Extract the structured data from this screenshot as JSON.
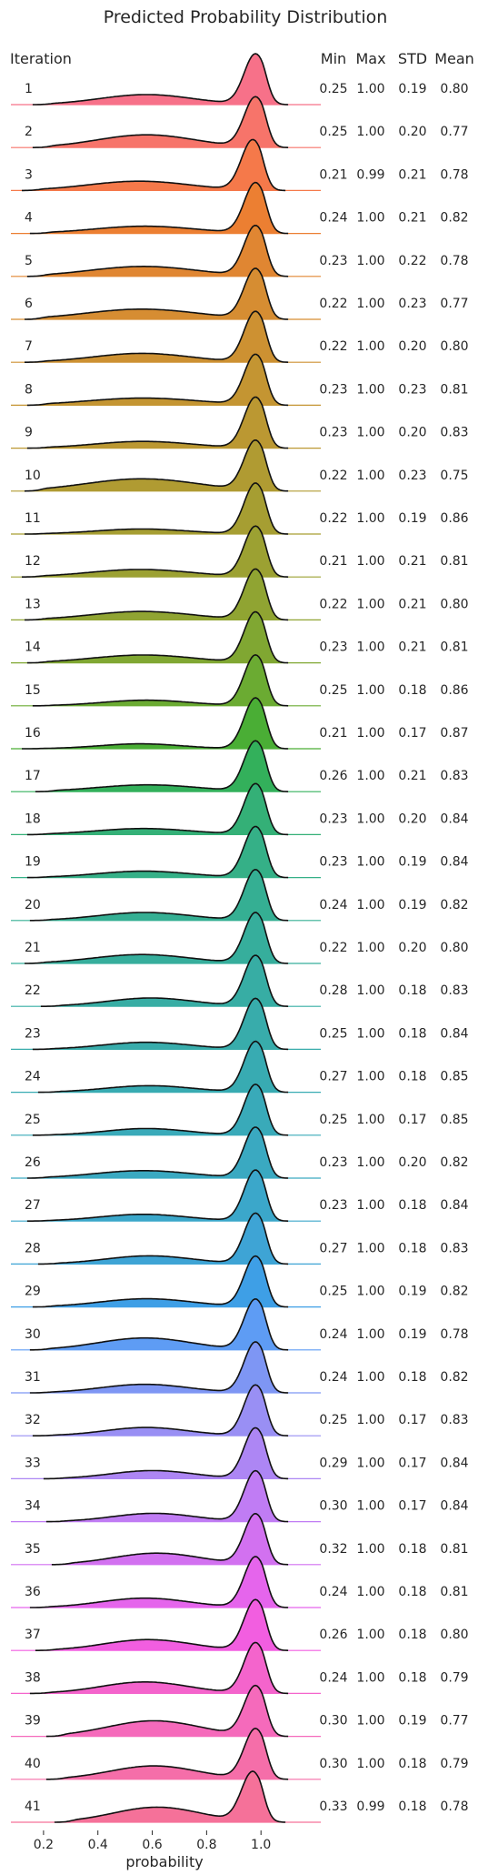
{
  "chart_data": {
    "type": "ridgeline",
    "title": "Predicted Probability Distribution",
    "xlabel": "probability",
    "row_header": "Iteration",
    "stat_headers": [
      "Min",
      "Max",
      "STD",
      "Mean"
    ],
    "xlim": [
      0.08,
      1.22
    ],
    "x_ticks": [
      "0.2",
      "0.4",
      "0.6",
      "0.8",
      "1.0"
    ],
    "rows": [
      {
        "label": "1",
        "min": "0.25",
        "max": "1.00",
        "std": "0.19",
        "mean": "0.80",
        "color": "#f77189"
      },
      {
        "label": "2",
        "min": "0.25",
        "max": "1.00",
        "std": "0.20",
        "mean": "0.77",
        "color": "#f7746a"
      },
      {
        "label": "3",
        "min": "0.21",
        "max": "0.99",
        "std": "0.21",
        "mean": "0.78",
        "color": "#f5794a"
      },
      {
        "label": "4",
        "min": "0.24",
        "max": "1.00",
        "std": "0.21",
        "mean": "0.82",
        "color": "#ec7f32"
      },
      {
        "label": "5",
        "min": "0.23",
        "max": "1.00",
        "std": "0.22",
        "mean": "0.78",
        "color": "#e08632"
      },
      {
        "label": "6",
        "min": "0.22",
        "max": "1.00",
        "std": "0.23",
        "mean": "0.77",
        "color": "#d68d32"
      },
      {
        "label": "7",
        "min": "0.22",
        "max": "1.00",
        "std": "0.20",
        "mean": "0.80",
        "color": "#cd9132"
      },
      {
        "label": "8",
        "min": "0.23",
        "max": "1.00",
        "std": "0.23",
        "mean": "0.81",
        "color": "#c49532"
      },
      {
        "label": "9",
        "min": "0.23",
        "max": "1.00",
        "std": "0.20",
        "mean": "0.83",
        "color": "#bb9832"
      },
      {
        "label": "10",
        "min": "0.22",
        "max": "1.00",
        "std": "0.23",
        "mean": "0.75",
        "color": "#b09b32"
      },
      {
        "label": "11",
        "min": "0.22",
        "max": "1.00",
        "std": "0.19",
        "mean": "0.86",
        "color": "#a69e32"
      },
      {
        "label": "12",
        "min": "0.21",
        "max": "1.00",
        "std": "0.21",
        "mean": "0.81",
        "color": "#9ca132"
      },
      {
        "label": "13",
        "min": "0.22",
        "max": "1.00",
        "std": "0.21",
        "mean": "0.80",
        "color": "#90a432"
      },
      {
        "label": "14",
        "min": "0.23",
        "max": "1.00",
        "std": "0.21",
        "mean": "0.81",
        "color": "#80a732"
      },
      {
        "label": "15",
        "min": "0.25",
        "max": "1.00",
        "std": "0.18",
        "mean": "0.86",
        "color": "#6bab32"
      },
      {
        "label": "16",
        "min": "0.21",
        "max": "1.00",
        "std": "0.17",
        "mean": "0.87",
        "color": "#4aae35"
      },
      {
        "label": "17",
        "min": "0.26",
        "max": "1.00",
        "std": "0.21",
        "mean": "0.83",
        "color": "#33b05b"
      },
      {
        "label": "18",
        "min": "0.23",
        "max": "1.00",
        "std": "0.20",
        "mean": "0.84",
        "color": "#34b077"
      },
      {
        "label": "19",
        "min": "0.23",
        "max": "1.00",
        "std": "0.19",
        "mean": "0.84",
        "color": "#35b087"
      },
      {
        "label": "20",
        "min": "0.24",
        "max": "1.00",
        "std": "0.19",
        "mean": "0.82",
        "color": "#35af93"
      },
      {
        "label": "21",
        "min": "0.22",
        "max": "1.00",
        "std": "0.20",
        "mean": "0.80",
        "color": "#36ae9c"
      },
      {
        "label": "22",
        "min": "0.28",
        "max": "1.00",
        "std": "0.18",
        "mean": "0.83",
        "color": "#37ada4"
      },
      {
        "label": "23",
        "min": "0.25",
        "max": "1.00",
        "std": "0.18",
        "mean": "0.84",
        "color": "#38acab"
      },
      {
        "label": "24",
        "min": "0.27",
        "max": "1.00",
        "std": "0.18",
        "mean": "0.85",
        "color": "#38abb2"
      },
      {
        "label": "25",
        "min": "0.25",
        "max": "1.00",
        "std": "0.17",
        "mean": "0.85",
        "color": "#39aab9"
      },
      {
        "label": "26",
        "min": "0.23",
        "max": "1.00",
        "std": "0.20",
        "mean": "0.82",
        "color": "#3aa9c1"
      },
      {
        "label": "27",
        "min": "0.23",
        "max": "1.00",
        "std": "0.18",
        "mean": "0.84",
        "color": "#3ba7ca"
      },
      {
        "label": "28",
        "min": "0.27",
        "max": "1.00",
        "std": "0.18",
        "mean": "0.83",
        "color": "#3ea4d5"
      },
      {
        "label": "29",
        "min": "0.25",
        "max": "1.00",
        "std": "0.19",
        "mean": "0.82",
        "color": "#3e9fe6"
      },
      {
        "label": "30",
        "min": "0.24",
        "max": "1.00",
        "std": "0.19",
        "mean": "0.78",
        "color": "#5e9cf4"
      },
      {
        "label": "31",
        "min": "0.24",
        "max": "1.00",
        "std": "0.18",
        "mean": "0.82",
        "color": "#7e96f4"
      },
      {
        "label": "32",
        "min": "0.25",
        "max": "1.00",
        "std": "0.17",
        "mean": "0.83",
        "color": "#998ff4"
      },
      {
        "label": "33",
        "min": "0.29",
        "max": "1.00",
        "std": "0.17",
        "mean": "0.84",
        "color": "#ad86f4"
      },
      {
        "label": "34",
        "min": "0.30",
        "max": "1.00",
        "std": "0.17",
        "mean": "0.84",
        "color": "#c07cf4"
      },
      {
        "label": "35",
        "min": "0.32",
        "max": "1.00",
        "std": "0.18",
        "mean": "0.81",
        "color": "#d271f0"
      },
      {
        "label": "36",
        "min": "0.24",
        "max": "1.00",
        "std": "0.18",
        "mean": "0.81",
        "color": "#e565ec"
      },
      {
        "label": "37",
        "min": "0.26",
        "max": "1.00",
        "std": "0.18",
        "mean": "0.80",
        "color": "#f25ee0"
      },
      {
        "label": "38",
        "min": "0.24",
        "max": "1.00",
        "std": "0.18",
        "mean": "0.79",
        "color": "#f464cc"
      },
      {
        "label": "39",
        "min": "0.30",
        "max": "1.00",
        "std": "0.19",
        "mean": "0.77",
        "color": "#f56abb"
      },
      {
        "label": "40",
        "min": "0.30",
        "max": "1.00",
        "std": "0.18",
        "mean": "0.79",
        "color": "#f56ea9"
      },
      {
        "label": "41",
        "min": "0.33",
        "max": "0.99",
        "std": "0.18",
        "mean": "0.78",
        "color": "#f57199"
      }
    ]
  }
}
